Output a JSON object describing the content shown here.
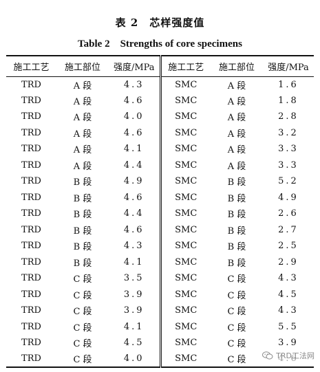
{
  "caption": {
    "cn": "表 2　芯样强度值",
    "en": "Table 2　Strengths of core specimens"
  },
  "table": {
    "headers": [
      "施工工艺",
      "施工部位",
      "强度/MPa",
      "施工工艺",
      "施工部位",
      "强度/MPa"
    ],
    "rows": [
      [
        "TRD",
        "A 段",
        "4.3",
        "SMC",
        "A 段",
        "1.6"
      ],
      [
        "TRD",
        "A 段",
        "4.6",
        "SMC",
        "A 段",
        "1.8"
      ],
      [
        "TRD",
        "A 段",
        "4.0",
        "SMC",
        "A 段",
        "2.8"
      ],
      [
        "TRD",
        "A 段",
        "4.6",
        "SMC",
        "A 段",
        "3.2"
      ],
      [
        "TRD",
        "A 段",
        "4.1",
        "SMC",
        "A 段",
        "3.3"
      ],
      [
        "TRD",
        "A 段",
        "4.4",
        "SMC",
        "A 段",
        "3.3"
      ],
      [
        "TRD",
        "B 段",
        "4.9",
        "SMC",
        "B 段",
        "5.2"
      ],
      [
        "TRD",
        "B 段",
        "4.6",
        "SMC",
        "B 段",
        "4.9"
      ],
      [
        "TRD",
        "B 段",
        "4.4",
        "SMC",
        "B 段",
        "2.6"
      ],
      [
        "TRD",
        "B 段",
        "4.6",
        "SMC",
        "B 段",
        "2.7"
      ],
      [
        "TRD",
        "B 段",
        "4.3",
        "SMC",
        "B 段",
        "2.5"
      ],
      [
        "TRD",
        "B 段",
        "4.1",
        "SMC",
        "B 段",
        "2.9"
      ],
      [
        "TRD",
        "C 段",
        "3.5",
        "SMC",
        "C 段",
        "4.3"
      ],
      [
        "TRD",
        "C 段",
        "3.9",
        "SMC",
        "C 段",
        "4.5"
      ],
      [
        "TRD",
        "C 段",
        "3.9",
        "SMC",
        "C 段",
        "4.3"
      ],
      [
        "TRD",
        "C 段",
        "4.1",
        "SMC",
        "C 段",
        "5.5"
      ],
      [
        "TRD",
        "C 段",
        "4.5",
        "SMC",
        "C 段",
        "3.9"
      ],
      [
        "TRD",
        "C 段",
        "4.0",
        "SMC",
        "C 段",
        "4.6"
      ]
    ]
  },
  "watermark": {
    "text": "TRD工法网",
    "icon": "wechat-logo-icon"
  }
}
